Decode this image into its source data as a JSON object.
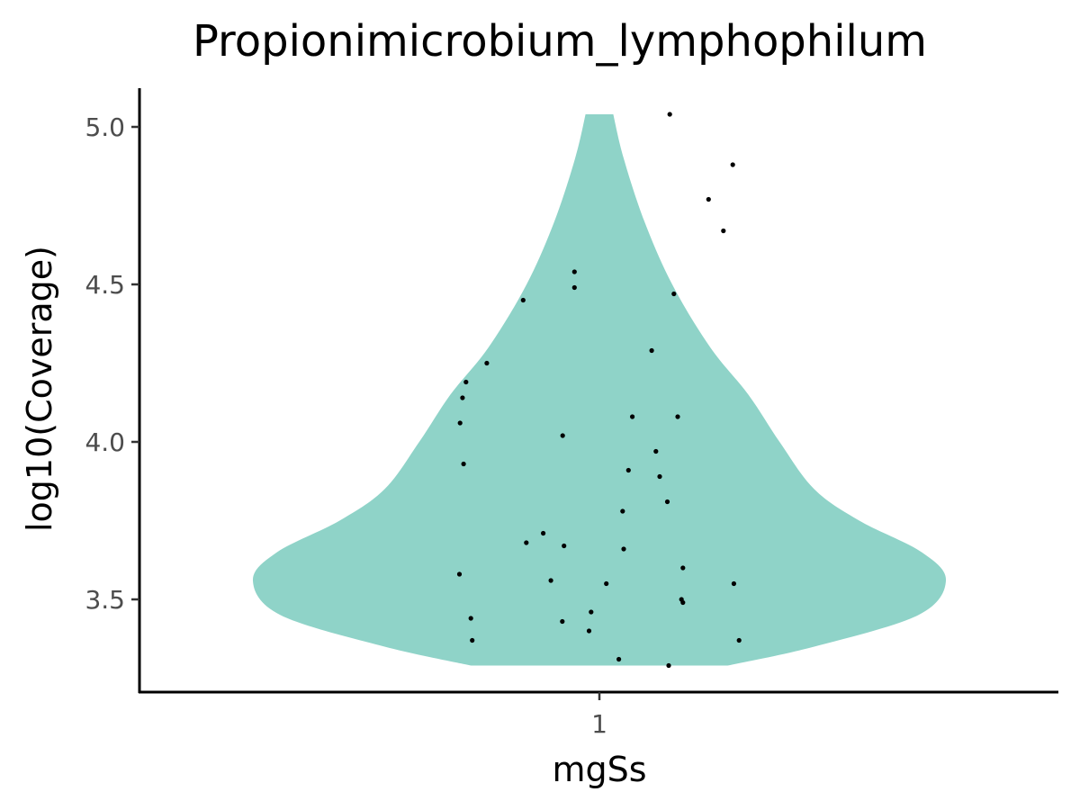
{
  "chart_data": {
    "type": "violin",
    "title": "Propionimicrobium_lymphophilum",
    "xlabel": "mgSs",
    "ylabel": "log10(Coverage)",
    "categories": [
      "1"
    ],
    "yticks": [
      "3.5",
      "4.0",
      "4.5",
      "5.0"
    ],
    "ylim": [
      3.22,
      5.12
    ],
    "fill_color": "#8fd3c8",
    "point_color": "#000000",
    "grid": false,
    "legend": "none",
    "violin_width_profile": [
      {
        "y": 3.29,
        "w": 0.37
      },
      {
        "y": 3.35,
        "w": 0.62
      },
      {
        "y": 3.45,
        "w": 0.92
      },
      {
        "y": 3.56,
        "w": 1.0
      },
      {
        "y": 3.65,
        "w": 0.93
      },
      {
        "y": 3.75,
        "w": 0.75
      },
      {
        "y": 3.85,
        "w": 0.62
      },
      {
        "y": 4.0,
        "w": 0.52
      },
      {
        "y": 4.15,
        "w": 0.43
      },
      {
        "y": 4.3,
        "w": 0.32
      },
      {
        "y": 4.5,
        "w": 0.21
      },
      {
        "y": 4.7,
        "w": 0.13
      },
      {
        "y": 4.9,
        "w": 0.07
      },
      {
        "y": 5.04,
        "w": 0.04
      }
    ],
    "points": [
      {
        "x": 0.203,
        "y": 5.04
      },
      {
        "x": 0.385,
        "y": 4.88
      },
      {
        "x": 0.315,
        "y": 4.77
      },
      {
        "x": 0.358,
        "y": 4.67
      },
      {
        "x": -0.072,
        "y": 4.54
      },
      {
        "x": -0.072,
        "y": 4.49
      },
      {
        "x": -0.22,
        "y": 4.45
      },
      {
        "x": 0.215,
        "y": 4.47
      },
      {
        "x": 0.151,
        "y": 4.29
      },
      {
        "x": -0.325,
        "y": 4.25
      },
      {
        "x": -0.385,
        "y": 4.19
      },
      {
        "x": -0.395,
        "y": 4.14
      },
      {
        "x": 0.095,
        "y": 4.08
      },
      {
        "x": 0.226,
        "y": 4.08
      },
      {
        "x": -0.402,
        "y": 4.06
      },
      {
        "x": -0.106,
        "y": 4.02
      },
      {
        "x": 0.163,
        "y": 3.97
      },
      {
        "x": -0.392,
        "y": 3.93
      },
      {
        "x": 0.084,
        "y": 3.91
      },
      {
        "x": 0.174,
        "y": 3.89
      },
      {
        "x": 0.196,
        "y": 3.81
      },
      {
        "x": 0.067,
        "y": 3.78
      },
      {
        "x": -0.162,
        "y": 3.71
      },
      {
        "x": -0.211,
        "y": 3.68
      },
      {
        "x": -0.102,
        "y": 3.67
      },
      {
        "x": 0.07,
        "y": 3.66
      },
      {
        "x": 0.241,
        "y": 3.6
      },
      {
        "x": -0.404,
        "y": 3.58
      },
      {
        "x": -0.14,
        "y": 3.56
      },
      {
        "x": 0.02,
        "y": 3.55
      },
      {
        "x": 0.388,
        "y": 3.55
      },
      {
        "x": 0.237,
        "y": 3.5
      },
      {
        "x": 0.241,
        "y": 3.49
      },
      {
        "x": -0.024,
        "y": 3.46
      },
      {
        "x": -0.371,
        "y": 3.44
      },
      {
        "x": -0.107,
        "y": 3.43
      },
      {
        "x": -0.03,
        "y": 3.4
      },
      {
        "x": -0.367,
        "y": 3.37
      },
      {
        "x": 0.403,
        "y": 3.37
      },
      {
        "x": 0.056,
        "y": 3.31
      },
      {
        "x": 0.2,
        "y": 3.29
      }
    ]
  }
}
